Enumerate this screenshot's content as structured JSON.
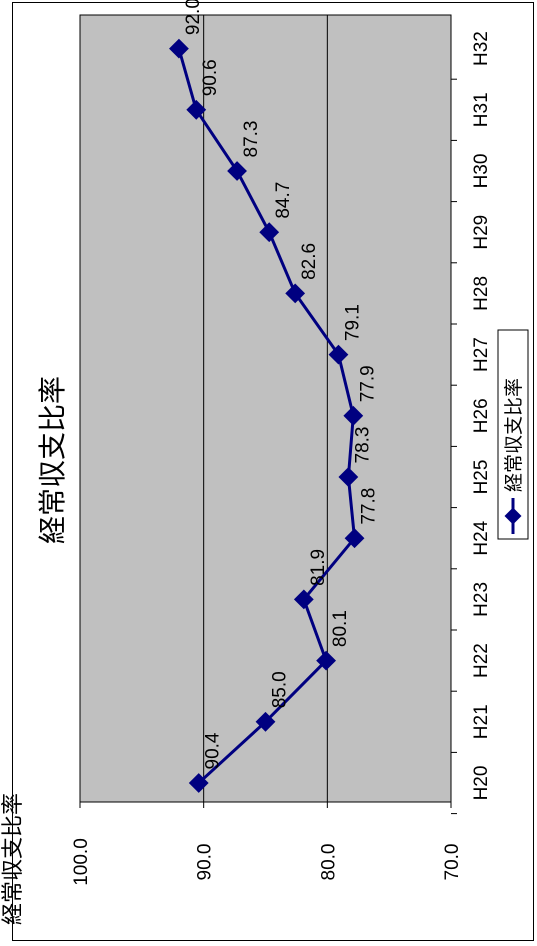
{
  "corner_text": "経常収支比率",
  "chart_data": {
    "type": "line",
    "title": "経常収支比率",
    "categories": [
      "H20",
      "H21",
      "H22",
      "H23",
      "H24",
      "H25",
      "H26",
      "H27",
      "H28",
      "H29",
      "H30",
      "H31",
      "H32"
    ],
    "series": [
      {
        "name": "経常収支比率",
        "values": [
          90.4,
          85.0,
          80.1,
          81.9,
          77.8,
          78.3,
          77.9,
          79.1,
          82.6,
          84.7,
          87.3,
          90.6,
          92.0
        ],
        "color": "#000080"
      }
    ],
    "ylim": [
      70.0,
      100.0
    ],
    "yticks": [
      "70.0",
      "80.0",
      "90.0",
      "100.0"
    ],
    "grid": true,
    "plot_background": "#c0c0c0",
    "legend": "bottom",
    "orientation": "rotated-90-ccw"
  }
}
